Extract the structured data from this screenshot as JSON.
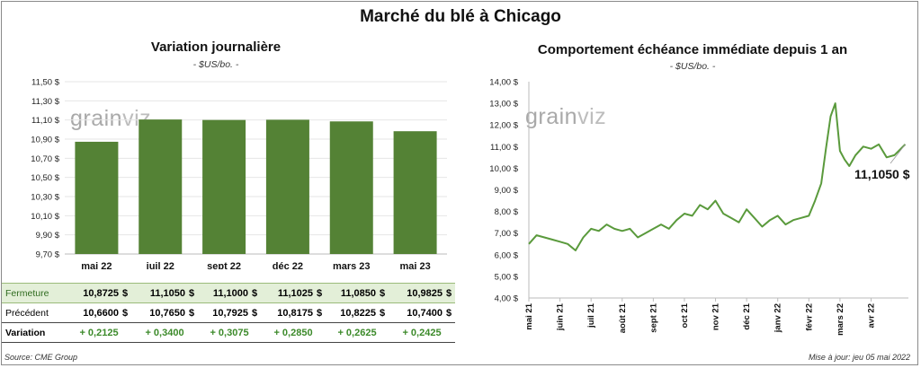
{
  "title": "Marché du blé à Chicago",
  "left": {
    "subtitle": "Variation journalière",
    "unit": "- $US/bo. -",
    "logo": {
      "part1": "grain",
      "part2": "viz"
    }
  },
  "right": {
    "subtitle": "Comportement échéance immédiate depuis 1 an",
    "unit": "- $US/bo. -",
    "logo": {
      "part1": "grain",
      "part2": "viz"
    },
    "last_value_label": "11,1050 $"
  },
  "table": {
    "rows": [
      {
        "label": "Fermeture",
        "values": [
          "10,8725",
          "11,1050",
          "11,1000",
          "11,1025",
          "11,0850",
          "10,9825"
        ],
        "unit": "$"
      },
      {
        "label": "Précédent",
        "values": [
          "10,6600",
          "10,7650",
          "10,7925",
          "10,8175",
          "10,8225",
          "10,7400"
        ],
        "unit": "$"
      },
      {
        "label": "Variation",
        "values": [
          "+ 0,2125",
          "+ 0,3400",
          "+ 0,3075",
          "+ 0,2850",
          "+ 0,2625",
          "+ 0,2425"
        ]
      }
    ]
  },
  "footer": {
    "source": "Source: CME Group",
    "update": "Mise à jour: jeu 05 mai 2022"
  },
  "colors": {
    "bar": "#548235",
    "line": "#5a9a3c",
    "table_highlight": "#e3efd8",
    "positive": "#3c8a2a"
  },
  "chart_data": [
    {
      "type": "bar",
      "categories": [
        "mai 22",
        "juil 22",
        "sept 22",
        "déc 22",
        "mars 23",
        "mai 23"
      ],
      "values": [
        10.8725,
        11.105,
        11.1,
        11.1025,
        11.085,
        10.9825
      ],
      "title": "Variation journalière",
      "ylabel": "- $US/bo. -",
      "ylim": [
        9.7,
        11.5
      ],
      "yticks": [
        9.7,
        9.9,
        10.1,
        10.3,
        10.5,
        10.7,
        10.9,
        11.1,
        11.3,
        11.5
      ],
      "ytick_labels": [
        "9,70 $",
        "9,90 $",
        "10,10 $",
        "10,30 $",
        "10,50 $",
        "10,70 $",
        "10,90 $",
        "11,10 $",
        "11,30 $",
        "11,50 $"
      ]
    },
    {
      "type": "line",
      "title": "Comportement échéance immédiate depuis 1 an",
      "ylabel": "- $US/bo. -",
      "ylim": [
        4,
        14
      ],
      "yticks": [
        4,
        5,
        6,
        7,
        8,
        9,
        10,
        11,
        12,
        13,
        14
      ],
      "ytick_labels": [
        "4,00 $",
        "5,00 $",
        "6,00 $",
        "7,00 $",
        "8,00 $",
        "9,00 $",
        "10,00 $",
        "11,00 $",
        "12,00 $",
        "13,00 $",
        "14,00 $"
      ],
      "x_tick_labels": [
        "mai 21",
        "juin 21",
        "juil 21",
        "août 21",
        "sept 21",
        "oct 21",
        "nov 21",
        "déc 21",
        "janv 22",
        "févr 22",
        "mars 22",
        "avr 22"
      ],
      "x": [
        0,
        0.25,
        0.5,
        0.75,
        1,
        1.25,
        1.5,
        1.75,
        2,
        2.25,
        2.5,
        2.75,
        3,
        3.25,
        3.5,
        3.75,
        4,
        4.25,
        4.5,
        4.75,
        5,
        5.25,
        5.5,
        5.75,
        6,
        6.25,
        6.5,
        6.75,
        7,
        7.25,
        7.5,
        7.75,
        8,
        8.25,
        8.5,
        8.75,
        9,
        9.2,
        9.4,
        9.55,
        9.7,
        9.85,
        10,
        10.15,
        10.3,
        10.5,
        10.75,
        11,
        11.25,
        11.5,
        11.75,
        12.1
      ],
      "y": [
        6.5,
        6.9,
        6.8,
        6.7,
        6.6,
        6.5,
        6.2,
        6.8,
        7.2,
        7.1,
        7.4,
        7.2,
        7.1,
        7.2,
        6.8,
        7.0,
        7.2,
        7.4,
        7.2,
        7.6,
        7.9,
        7.8,
        8.3,
        8.1,
        8.5,
        7.9,
        7.7,
        7.5,
        8.1,
        7.7,
        7.3,
        7.6,
        7.8,
        7.4,
        7.6,
        7.7,
        7.8,
        8.5,
        9.3,
        10.9,
        12.4,
        13.0,
        10.8,
        10.4,
        10.1,
        10.6,
        11.0,
        10.9,
        11.1,
        10.5,
        10.6,
        11.105
      ]
    }
  ]
}
